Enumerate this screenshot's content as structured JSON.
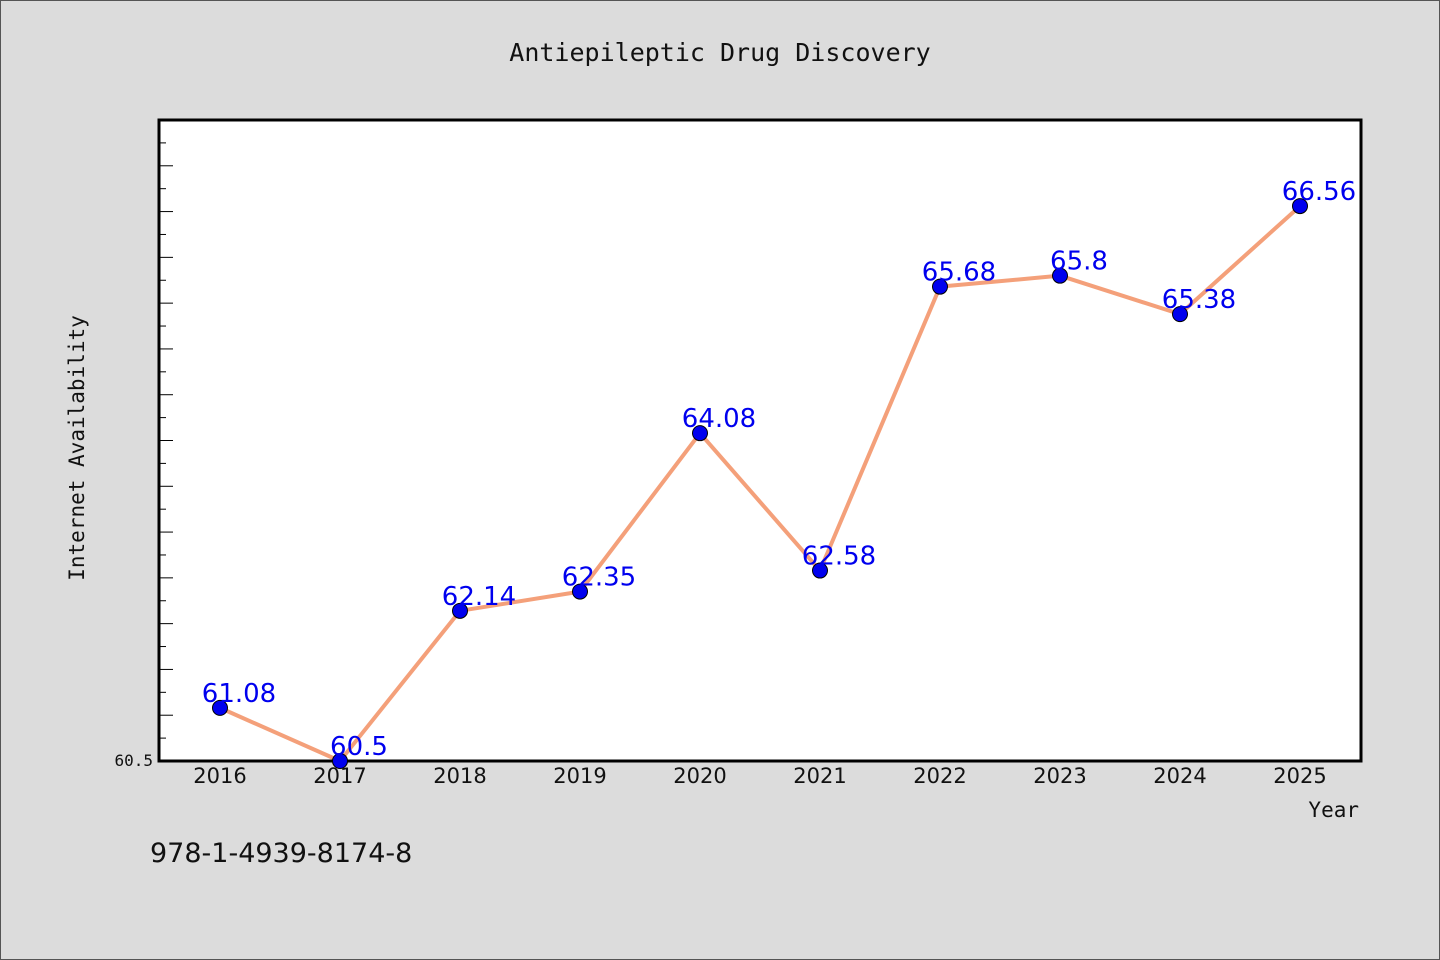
{
  "chart_data": {
    "type": "line",
    "title": "Antiepileptic Drug Discovery",
    "xlabel": "Year",
    "ylabel": "Internet Availability",
    "categories": [
      "2016",
      "2017",
      "2018",
      "2019",
      "2020",
      "2021",
      "2022",
      "2023",
      "2024",
      "2025"
    ],
    "series": [
      {
        "values": [
          61.08,
          60.5,
          62.14,
          62.35,
          64.08,
          62.58,
          65.68,
          65.8,
          65.38,
          66.56
        ],
        "labels": [
          "61.08",
          "60.5",
          "62.14",
          "62.35",
          "64.08",
          "62.58",
          "65.68",
          "65.8",
          "65.38",
          "66.56"
        ]
      }
    ],
    "ylim": [
      60.5,
      67.5
    ],
    "ytick_label": "60.5",
    "grid": false,
    "line_color": "#f4a07a",
    "marker_color": "#0000ee",
    "label_color": "#0000ee"
  },
  "footer_text": "978-1-4939-8174-8"
}
